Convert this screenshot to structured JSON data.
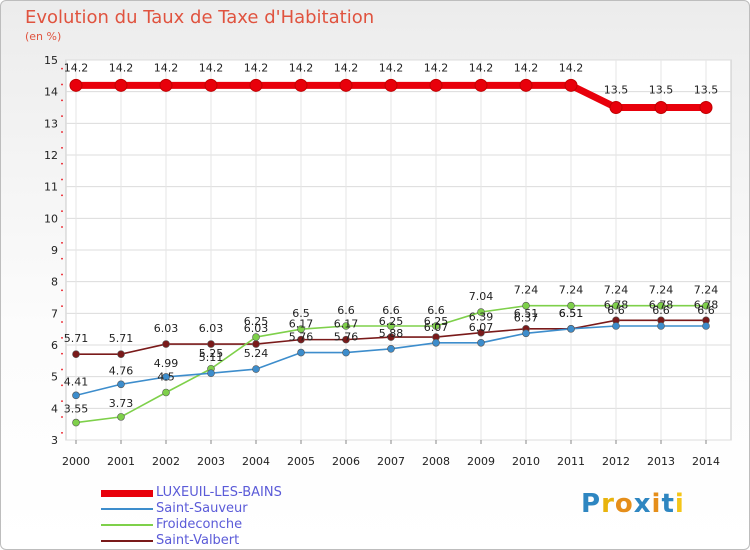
{
  "title": "Evolution du Taux de Taxe d'Habitation",
  "unit": "(en %)",
  "logo": {
    "text": "Proxiti",
    "letter_colors": [
      "#2e86c1",
      "#e8b30c",
      "#e58e1a",
      "#2e86c1",
      "#e58e1a",
      "#2e86c1",
      "#f4c518"
    ]
  },
  "chart_data": {
    "type": "line",
    "title": "Evolution du Taux de Taxe d'Habitation",
    "ylabel": "(en %)",
    "xlabel": "",
    "ylim": [
      3,
      15
    ],
    "yticks": [
      3,
      4,
      5,
      6,
      7,
      8,
      9,
      10,
      11,
      12,
      13,
      14,
      15
    ],
    "x": [
      "2000",
      "2001",
      "2002",
      "2003",
      "2004",
      "2005",
      "2006",
      "2007",
      "2008",
      "2009",
      "2010",
      "2011",
      "2012",
      "2013",
      "2014"
    ],
    "legend_position": "bottom-left",
    "series": [
      {
        "name": "LUXEUIL-LES-BAINS",
        "color": "#e8000b",
        "values": [
          14.2,
          14.2,
          14.2,
          14.2,
          14.2,
          14.2,
          14.2,
          14.2,
          14.2,
          14.2,
          14.2,
          14.2,
          13.5,
          13.5,
          13.5
        ],
        "labels": [
          "14.2",
          "14.2",
          "14.2",
          "14.2",
          "14.2",
          "14.2",
          "14.2",
          "14.2",
          "14.2",
          "14.2",
          "14.2",
          "14.2",
          "13.5",
          "13.5",
          "13.5"
        ]
      },
      {
        "name": "Saint-Sauveur",
        "color": "#3d8dcc",
        "values": [
          4.41,
          4.76,
          4.99,
          5.11,
          5.24,
          5.76,
          5.76,
          5.88,
          6.07,
          6.07,
          6.37,
          6.51,
          6.6,
          6.6,
          6.6
        ],
        "labels": [
          "4.41",
          "4.76",
          "4.99",
          "5.11",
          "5.24",
          "5.76",
          "5.76",
          "5.88",
          "6.07",
          "6.07",
          "6.37",
          "6.51",
          "6.6",
          "6.6",
          "6.6"
        ]
      },
      {
        "name": "Froideconche",
        "color": "#7ed04a",
        "values": [
          3.55,
          3.73,
          4.5,
          5.25,
          6.25,
          6.5,
          6.6,
          6.6,
          6.6,
          7.04,
          7.24,
          7.24,
          7.24,
          7.24,
          7.24
        ],
        "labels": [
          "3.55",
          "3.73",
          "4.5",
          "5.25",
          "6.25",
          "6.5",
          "6.6",
          "6.6",
          "6.6",
          "7.04",
          "7.24",
          "7.24",
          "7.24",
          "7.24",
          "7.24"
        ]
      },
      {
        "name": "Saint-Valbert",
        "color": "#7a1a1a",
        "values": [
          5.71,
          5.71,
          6.03,
          6.03,
          6.03,
          6.17,
          6.17,
          6.25,
          6.25,
          6.39,
          6.51,
          6.51,
          6.78,
          6.78,
          6.78
        ],
        "labels": [
          "5.71",
          "5.71",
          "6.03",
          "6.03",
          "6.03",
          "6.17",
          "6.17",
          "6.25",
          "6.25",
          "6.39",
          "6.51",
          "6.51",
          "6.78",
          "6.78",
          "6.78"
        ]
      }
    ]
  }
}
